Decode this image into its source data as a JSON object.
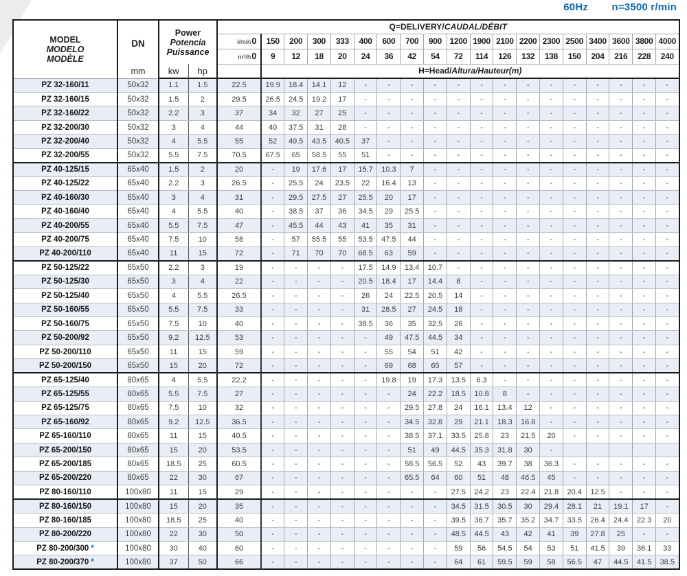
{
  "page": {
    "frequency": "60Hz",
    "speed": "n=3500 r/min"
  },
  "colors": {
    "accent_blue": "#0d68b5",
    "shaded_row": "#e9edf5",
    "grid_thick": "#1a1a1a"
  },
  "table": {
    "header": {
      "model": {
        "en": "MODEL",
        "es": "MODELO",
        "fr": "MODÈLE"
      },
      "dn": {
        "label": "DN",
        "unit": "mm"
      },
      "power": {
        "en": "Power",
        "es": "Potencia",
        "fr": "Puissance",
        "units": [
          "kw",
          "hp"
        ]
      },
      "delivery_en": "Q=DELIVERY/",
      "delivery_intl": "CAUDAL/DÉBIT",
      "head_en": "H=Head/",
      "head_intl": "Altura/Hauteur(m)",
      "lmin_label": "l/min",
      "m3h_label": "m³/h",
      "lmin_values": [
        "0",
        "150",
        "200",
        "300",
        "333",
        "400",
        "600",
        "700",
        "900",
        "1200",
        "1900",
        "2100",
        "2200",
        "2300",
        "2500",
        "3400",
        "3600",
        "3800",
        "4000"
      ],
      "m3h_values": [
        "0",
        "9",
        "12",
        "18",
        "20",
        "24",
        "36",
        "42",
        "54",
        "72",
        "114",
        "126",
        "132",
        "138",
        "150",
        "204",
        "216",
        "228",
        "240"
      ]
    },
    "star_symbol": "*",
    "group_breaks": [
      5,
      12,
      20,
      29
    ],
    "rows": [
      {
        "model": "PZ 32-160/11",
        "star": false,
        "dn": "50x32",
        "kw": "1.1",
        "hp": "1.5",
        "head": [
          "22.5",
          "19.9",
          "18.4",
          "14.1",
          "12",
          "-",
          "-",
          "-",
          "-",
          "-",
          "-",
          "-",
          "-",
          "-",
          "-",
          "-",
          "-",
          "-",
          "-"
        ]
      },
      {
        "model": "PZ 32-160/15",
        "star": false,
        "dn": "50x32",
        "kw": "1.5",
        "hp": "2",
        "head": [
          "29.5",
          "26.5",
          "24.5",
          "19.2",
          "17",
          "-",
          "-",
          "-",
          "-",
          "-",
          "-",
          "-",
          "-",
          "-",
          "-",
          "-",
          "-",
          "-",
          "-"
        ]
      },
      {
        "model": "PZ 32-160/22",
        "star": false,
        "dn": "50x32",
        "kw": "2.2",
        "hp": "3",
        "head": [
          "37",
          "34",
          "32",
          "27",
          "25",
          "-",
          "-",
          "-",
          "-",
          "-",
          "-",
          "-",
          "-",
          "-",
          "-",
          "-",
          "-",
          "-",
          "-"
        ]
      },
      {
        "model": "PZ 32-200/30",
        "star": false,
        "dn": "50x32",
        "kw": "3",
        "hp": "4",
        "head": [
          "44",
          "40",
          "37.5",
          "31",
          "28",
          "-",
          "-",
          "-",
          "-",
          "-",
          "-",
          "-",
          "-",
          "-",
          "-",
          "-",
          "-",
          "-",
          "-"
        ]
      },
      {
        "model": "PZ 32-200/40",
        "star": false,
        "dn": "50x32",
        "kw": "4",
        "hp": "5.5",
        "head": [
          "55",
          "52",
          "49.5",
          "43.5",
          "40.5",
          "37",
          "-",
          "-",
          "-",
          "-",
          "-",
          "-",
          "-",
          "-",
          "-",
          "-",
          "-",
          "-",
          "-"
        ]
      },
      {
        "model": "PZ 32-200/55",
        "star": false,
        "dn": "50x32",
        "kw": "5.5",
        "hp": "7.5",
        "head": [
          "70.5",
          "67.5",
          "65",
          "58.5",
          "55",
          "51",
          "-",
          "-",
          "-",
          "-",
          "-",
          "-",
          "-",
          "-",
          "-",
          "-",
          "-",
          "-",
          "-"
        ]
      },
      {
        "model": "PZ 40-125/15",
        "star": false,
        "dn": "65x40",
        "kw": "1.5",
        "hp": "2",
        "head": [
          "20",
          "-",
          "19",
          "17.6",
          "17",
          "15.7",
          "10.3",
          "7",
          "-",
          "-",
          "-",
          "-",
          "-",
          "-",
          "-",
          "-",
          "-",
          "-",
          "-"
        ]
      },
      {
        "model": "PZ 40-125/22",
        "star": false,
        "dn": "65x40",
        "kw": "2.2",
        "hp": "3",
        "head": [
          "26.5",
          "-",
          "25.5",
          "24",
          "23.5",
          "22",
          "16.4",
          "13",
          "-",
          "-",
          "-",
          "-",
          "-",
          "-",
          "-",
          "-",
          "-",
          "-",
          "-"
        ]
      },
      {
        "model": "PZ 40-160/30",
        "star": false,
        "dn": "65x40",
        "kw": "3",
        "hp": "4",
        "head": [
          "31",
          "-",
          "29.5",
          "27.5",
          "27",
          "25.5",
          "20",
          "17",
          "-",
          "-",
          "-",
          "-",
          "-",
          "-",
          "-",
          "-",
          "-",
          "-",
          "-"
        ]
      },
      {
        "model": "PZ 40-160/40",
        "star": false,
        "dn": "65x40",
        "kw": "4",
        "hp": "5.5",
        "head": [
          "40",
          "-",
          "38.5",
          "37",
          "36",
          "34.5",
          "29",
          "25.5",
          "-",
          "-",
          "-",
          "-",
          "-",
          "-",
          "-",
          "-",
          "-",
          "-",
          "-"
        ]
      },
      {
        "model": "PZ 40-200/55",
        "star": false,
        "dn": "65x40",
        "kw": "5.5",
        "hp": "7.5",
        "head": [
          "47",
          "-",
          "45.5",
          "44",
          "43",
          "41",
          "35",
          "31",
          "-",
          "-",
          "-",
          "-",
          "-",
          "-",
          "-",
          "-",
          "-",
          "-",
          "-"
        ]
      },
      {
        "model": "PZ 40-200/75",
        "star": false,
        "dn": "65x40",
        "kw": "7.5",
        "hp": "10",
        "head": [
          "58",
          "-",
          "57",
          "55.5",
          "55",
          "53.5",
          "47.5",
          "44",
          "-",
          "-",
          "-",
          "-",
          "-",
          "-",
          "-",
          "-",
          "-",
          "-",
          "-"
        ]
      },
      {
        "model": "PZ 40-200/110",
        "star": false,
        "dn": "65x40",
        "kw": "11",
        "hp": "15",
        "head": [
          "72",
          "-",
          "71",
          "70",
          "70",
          "68.5",
          "63",
          "59",
          "-",
          "-",
          "-",
          "-",
          "-",
          "-",
          "-",
          "-",
          "-",
          "-",
          "-"
        ]
      },
      {
        "model": "PZ 50-125/22",
        "star": false,
        "dn": "65x50",
        "kw": "2.2",
        "hp": "3",
        "head": [
          "19",
          "-",
          "-",
          "-",
          "-",
          "17.5",
          "14.9",
          "13.4",
          "10.7",
          "-",
          "-",
          "-",
          "-",
          "-",
          "-",
          "-",
          "-",
          "-",
          "-"
        ]
      },
      {
        "model": "PZ 50-125/30",
        "star": false,
        "dn": "65x50",
        "kw": "3",
        "hp": "4",
        "head": [
          "22",
          "-",
          "-",
          "-",
          "-",
          "20.5",
          "18.4",
          "17",
          "14.4",
          "8",
          "-",
          "-",
          "-",
          "-",
          "-",
          "-",
          "-",
          "-",
          "-"
        ]
      },
      {
        "model": "PZ 50-125/40",
        "star": false,
        "dn": "65x50",
        "kw": "4",
        "hp": "5.5",
        "head": [
          "26.5",
          "-",
          "-",
          "-",
          "-",
          "26",
          "24",
          "22.5",
          "20.5",
          "14",
          "-",
          "-",
          "-",
          "-",
          "-",
          "-",
          "-",
          "-",
          "-"
        ]
      },
      {
        "model": "PZ 50-160/55",
        "star": false,
        "dn": "65x50",
        "kw": "5.5",
        "hp": "7.5",
        "head": [
          "33",
          "-",
          "-",
          "-",
          "-",
          "31",
          "28.5",
          "27",
          "24.5",
          "18",
          "-",
          "-",
          "-",
          "-",
          "-",
          "-",
          "-",
          "-",
          "-"
        ]
      },
      {
        "model": "PZ 50-160/75",
        "star": false,
        "dn": "65x50",
        "kw": "7.5",
        "hp": "10",
        "head": [
          "40",
          "-",
          "-",
          "-",
          "-",
          "38.5",
          "36",
          "35",
          "32.5",
          "26",
          "-",
          "-",
          "-",
          "-",
          "-",
          "-",
          "-",
          "-",
          "-"
        ]
      },
      {
        "model": "PZ 50-200/92",
        "star": false,
        "dn": "65x50",
        "kw": "9.2",
        "hp": "12.5",
        "head": [
          "53",
          "-",
          "-",
          "-",
          "-",
          "-",
          "49",
          "47.5",
          "44.5",
          "34",
          "-",
          "-",
          "-",
          "-",
          "-",
          "-",
          "-",
          "-",
          "-"
        ]
      },
      {
        "model": "PZ 50-200/110",
        "star": false,
        "dn": "65x50",
        "kw": "11",
        "hp": "15",
        "head": [
          "59",
          "-",
          "-",
          "-",
          "-",
          "-",
          "55",
          "54",
          "51",
          "42",
          "-",
          "-",
          "-",
          "-",
          "-",
          "-",
          "-",
          "-",
          "-"
        ]
      },
      {
        "model": "PZ 50-200/150",
        "star": false,
        "dn": "65x50",
        "kw": "15",
        "hp": "20",
        "head": [
          "72",
          "-",
          "-",
          "-",
          "-",
          "-",
          "69",
          "68",
          "65",
          "57",
          "-",
          "-",
          "-",
          "-",
          "-",
          "-",
          "-",
          "-",
          "-"
        ]
      },
      {
        "model": "PZ 65-125/40",
        "star": false,
        "dn": "80x65",
        "kw": "4",
        "hp": "5.5",
        "head": [
          "22.2",
          "-",
          "-",
          "-",
          "-",
          "-",
          "19.8",
          "19",
          "17.3",
          "13.5",
          "6.3",
          "-",
          "-",
          "-",
          "-",
          "-",
          "-",
          "-",
          "-"
        ]
      },
      {
        "model": "PZ 65-125/55",
        "star": false,
        "dn": "80x65",
        "kw": "5.5",
        "hp": "7.5",
        "head": [
          "27",
          "-",
          "-",
          "-",
          "-",
          "-",
          "-",
          "24",
          "22.2",
          "18.5",
          "10.8",
          "8",
          "-",
          "-",
          "-",
          "-",
          "-",
          "-",
          "-"
        ]
      },
      {
        "model": "PZ 65-125/75",
        "star": false,
        "dn": "80x65",
        "kw": "7.5",
        "hp": "10",
        "head": [
          "32",
          "-",
          "-",
          "-",
          "-",
          "-",
          "-",
          "29.5",
          "27.8",
          "24",
          "16.1",
          "13.4",
          "12",
          "-",
          "-",
          "-",
          "-",
          "-",
          "-"
        ]
      },
      {
        "model": "PZ 65-160/92",
        "star": false,
        "dn": "80x65",
        "kw": "9.2",
        "hp": "12.5",
        "head": [
          "36.5",
          "-",
          "-",
          "-",
          "-",
          "-",
          "-",
          "34.5",
          "32.8",
          "29",
          "21.1",
          "18.3",
          "16.8",
          "-",
          "-",
          "-",
          "-",
          "-",
          "-"
        ]
      },
      {
        "model": "PZ 65-160/110",
        "star": false,
        "dn": "80x65",
        "kw": "11",
        "hp": "15",
        "head": [
          "40.5",
          "-",
          "-",
          "-",
          "-",
          "-",
          "-",
          "38.5",
          "37.1",
          "33.5",
          "25.8",
          "23",
          "21.5",
          "20",
          "-",
          "-",
          "-",
          "-",
          "-"
        ]
      },
      {
        "model": "PZ 65-200/150",
        "star": false,
        "dn": "80x65",
        "kw": "15",
        "hp": "20",
        "head": [
          "53.5",
          "-",
          "-",
          "-",
          "-",
          "-",
          "-",
          "51",
          "49",
          "44.5",
          "35.3",
          "31.8",
          "30",
          "-",
          "",
          "",
          "",
          "",
          ""
        ]
      },
      {
        "model": "PZ 65-200/185",
        "star": false,
        "dn": "80x65",
        "kw": "18.5",
        "hp": "25",
        "head": [
          "60.5",
          "-",
          "-",
          "-",
          "-",
          "-",
          "-",
          "58.5",
          "56.5",
          "52",
          "43",
          "39.7",
          "38",
          "36.3",
          "-",
          "-",
          "-",
          "-",
          "-"
        ]
      },
      {
        "model": "PZ 65-200/220",
        "star": false,
        "dn": "80x65",
        "kw": "22",
        "hp": "30",
        "head": [
          "67",
          "-",
          "-",
          "-",
          "-",
          "-",
          "-",
          "65.5",
          "64",
          "60",
          "51",
          "48",
          "46.5",
          "45",
          "-",
          "-",
          "-",
          "-",
          "-"
        ]
      },
      {
        "model": "PZ 80-160/110",
        "star": false,
        "dn": "100x80",
        "kw": "11",
        "hp": "15",
        "head": [
          "29",
          "-",
          "-",
          "-",
          "-",
          "-",
          "-",
          "-",
          "-",
          "27.5",
          "24.2",
          "23",
          "22.4",
          "21.8",
          "20.4",
          "12.5",
          "-",
          "-",
          "-"
        ]
      },
      {
        "model": "PZ 80-160/150",
        "star": false,
        "dn": "100x80",
        "kw": "15",
        "hp": "20",
        "head": [
          "35",
          "-",
          "-",
          "-",
          "-",
          "-",
          "-",
          "-",
          "-",
          "34.5",
          "31.5",
          "30.5",
          "30",
          "29.4",
          "28.1",
          "21",
          "19.1",
          "17",
          "-"
        ]
      },
      {
        "model": "PZ 80-160/185",
        "star": false,
        "dn": "100x80",
        "kw": "18.5",
        "hp": "25",
        "head": [
          "40",
          "-",
          "-",
          "-",
          "-",
          "-",
          "-",
          "-",
          "-",
          "39.5",
          "36.7",
          "35.7",
          "35.2",
          "34.7",
          "33.5",
          "26.4",
          "24.4",
          "22.3",
          "20"
        ]
      },
      {
        "model": "PZ 80-200/220",
        "star": false,
        "dn": "100x80",
        "kw": "22",
        "hp": "30",
        "head": [
          "50",
          "-",
          "-",
          "-",
          "-",
          "-",
          "-",
          "-",
          "-",
          "48.5",
          "44.5",
          "43",
          "42",
          "41",
          "39",
          "27.8",
          "25",
          "-",
          "-"
        ]
      },
      {
        "model": "PZ 80-200/300",
        "star": true,
        "dn": "100x80",
        "kw": "30",
        "hp": "40",
        "head": [
          "60",
          "-",
          "-",
          "-",
          "-",
          "-",
          "-",
          "-",
          "-",
          "59",
          "56",
          "54.5",
          "54",
          "53",
          "51",
          "41.5",
          "39",
          "36.1",
          "33"
        ]
      },
      {
        "model": "PZ 80-200/370",
        "star": true,
        "dn": "100x80",
        "kw": "37",
        "hp": "50",
        "head": [
          "66",
          "-",
          "-",
          "-",
          "-",
          "-",
          "-",
          "-",
          "-",
          "64",
          "61",
          "59.5",
          "59",
          "58",
          "56.5",
          "47",
          "44.5",
          "41.5",
          "38.5"
        ]
      }
    ]
  }
}
